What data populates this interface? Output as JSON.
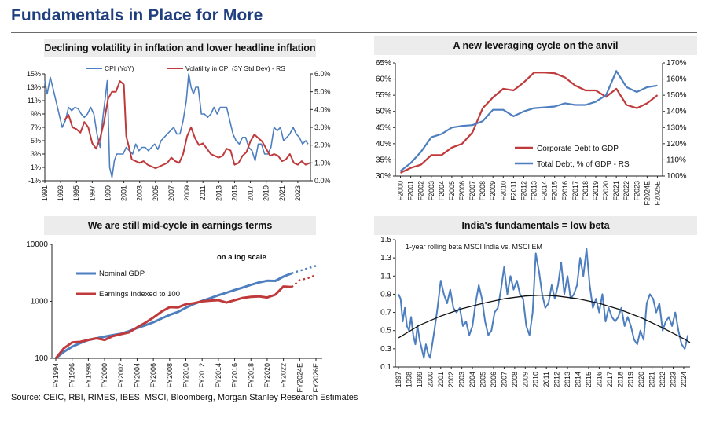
{
  "page": {
    "title": "Fundamentals in Place for More",
    "source": "Source: CEIC, RBI, RIMES, IBES, MSCI, Bloomberg, Morgan Stanley Research Estimates"
  },
  "colors": {
    "blue": "#4d7ebf",
    "red": "#c0393b",
    "title": "#1f3f7f",
    "panel_bg": "#ececec",
    "black": "#111111"
  },
  "chart_data": [
    {
      "id": "inflation",
      "type": "line",
      "title": "Declining volatility in inflation and lower headline inflation",
      "x_ticks": [
        "1991",
        "1993",
        "1995",
        "1997",
        "1999",
        "2001",
        "2003",
        "2005",
        "2007",
        "2009",
        "2011",
        "2013",
        "2015",
        "2017",
        "2019",
        "2021",
        "2023"
      ],
      "xlim": [
        1991,
        2024.6
      ],
      "y_left": {
        "ticks": [
          "-1%",
          "1%",
          "3%",
          "5%",
          "7%",
          "9%",
          "11%",
          "13%",
          "15%"
        ],
        "lim": [
          -1,
          15
        ]
      },
      "y_right": {
        "ticks": [
          "0.0%",
          "1.0%",
          "2.0%",
          "3.0%",
          "4.0%",
          "5.0%",
          "6.0%"
        ],
        "lim": [
          0,
          6
        ]
      },
      "series": [
        {
          "name": "CPI (YoY)",
          "axis": "left",
          "color": "#4d7ebf",
          "x": [
            1991,
            1991.3,
            1991.7,
            1992,
            1992.4,
            1992.8,
            1993.2,
            1993.6,
            1994,
            1994.4,
            1994.8,
            1995.2,
            1995.6,
            1996,
            1996.4,
            1996.8,
            1997.2,
            1997.6,
            1998,
            1998.3,
            1998.6,
            1998.9,
            1999.2,
            1999.5,
            1999.8,
            2000.1,
            2000.5,
            2000.9,
            2001.3,
            2001.7,
            2002.1,
            2002.5,
            2002.9,
            2003.3,
            2003.7,
            2004.1,
            2004.5,
            2004.9,
            2005.3,
            2005.7,
            2006.1,
            2006.5,
            2006.9,
            2007.3,
            2007.7,
            2008.1,
            2008.5,
            2008.9,
            2009.2,
            2009.5,
            2009.8,
            2010.1,
            2010.4,
            2010.8,
            2011.2,
            2011.6,
            2012,
            2012.4,
            2012.8,
            2013.2,
            2013.6,
            2014,
            2014.4,
            2014.8,
            2015.2,
            2015.6,
            2016,
            2016.4,
            2016.8,
            2017.2,
            2017.6,
            2018,
            2018.4,
            2018.8,
            2019.2,
            2019.6,
            2020,
            2020.4,
            2020.8,
            2021.2,
            2021.6,
            2022,
            2022.4,
            2022.8,
            2023.2,
            2023.6,
            2024,
            2024.3
          ],
          "y": [
            14,
            12,
            14.5,
            13,
            11,
            9,
            7,
            8,
            10,
            9.5,
            10,
            9.8,
            9,
            8.5,
            9,
            10,
            9,
            6,
            4,
            8,
            11,
            14,
            1,
            -0.5,
            2,
            3,
            3,
            3,
            4,
            3.5,
            3,
            4.5,
            3.5,
            4,
            4,
            3.5,
            4,
            4.5,
            3.7,
            5,
            5.5,
            6,
            6.5,
            7,
            6,
            6,
            8,
            11,
            15,
            13,
            12,
            13,
            13,
            9,
            9,
            8.5,
            9,
            10,
            9,
            10,
            10,
            10,
            8,
            6,
            5,
            4.5,
            5.5,
            5.5,
            4,
            3.5,
            2,
            4.5,
            4.5,
            3,
            3,
            4,
            7,
            6.5,
            7,
            5,
            5.5,
            6,
            7,
            6,
            5.5,
            4.5,
            5,
            4.5
          ]
        },
        {
          "name": "Volatility in CPI (3Y Std Dev) - RS",
          "axis": "right",
          "color": "#c0393b",
          "x": [
            1993.5,
            1994,
            1994.5,
            1995,
            1995.5,
            1996,
            1996.5,
            1997,
            1997.5,
            1998,
            1998.5,
            1999,
            1999.5,
            2000,
            2000.5,
            2001,
            2001.3,
            2001.7,
            2002,
            2002.5,
            2003,
            2003.5,
            2004,
            2004.5,
            2005,
            2005.5,
            2006,
            2006.5,
            2007,
            2007.5,
            2008,
            2008.5,
            2009,
            2009.5,
            2010,
            2010.5,
            2011,
            2011.5,
            2012,
            2012.5,
            2013,
            2013.5,
            2014,
            2014.5,
            2015,
            2015.5,
            2016,
            2016.5,
            2017,
            2017.5,
            2018,
            2018.5,
            2019,
            2019.5,
            2020,
            2020.5,
            2021,
            2021.5,
            2022,
            2022.5,
            2023,
            2023.5,
            2024,
            2024.5
          ],
          "y": [
            3.4,
            3.7,
            3.0,
            2.9,
            2.7,
            3.3,
            3.0,
            2.1,
            1.8,
            2.4,
            3.3,
            4.6,
            5.0,
            5.0,
            5.6,
            5.4,
            2.5,
            1.8,
            1.2,
            1.1,
            1.0,
            1.1,
            0.9,
            0.8,
            0.7,
            0.8,
            0.9,
            1.0,
            1.3,
            1.1,
            1.0,
            1.5,
            2.5,
            3.0,
            2.4,
            2.0,
            2.1,
            1.8,
            1.5,
            1.4,
            1.3,
            1.4,
            1.8,
            1.7,
            0.9,
            1.0,
            1.4,
            1.6,
            2.2,
            2.6,
            2.4,
            2.2,
            1.8,
            1.4,
            1.5,
            1.4,
            1.1,
            1.2,
            1.5,
            1.0,
            0.9,
            1.1,
            0.9,
            1.0
          ]
        }
      ]
    },
    {
      "id": "leverage",
      "type": "line",
      "title": "A new leveraging cycle on the anvil",
      "categories": [
        "F2000",
        "F2001",
        "F2002",
        "F2003",
        "F2004",
        "F2005",
        "F2006",
        "F2007",
        "F2008",
        "F2009",
        "F2010",
        "F2011",
        "F2012",
        "F2013",
        "F2014",
        "F2015",
        "F2016",
        "F2017",
        "F2018",
        "F2019",
        "F2020",
        "F2021",
        "F2022",
        "F2023",
        "F2024E",
        "F2025E"
      ],
      "y_left": {
        "ticks": [
          "30%",
          "35%",
          "40%",
          "45%",
          "50%",
          "55%",
          "60%",
          "65%"
        ],
        "lim": [
          30,
          65
        ]
      },
      "y_right": {
        "ticks": [
          "100%",
          "110%",
          "120%",
          "130%",
          "140%",
          "150%",
          "160%",
          "170%"
        ],
        "lim": [
          100,
          170
        ]
      },
      "series": [
        {
          "name": "Corporate Debt to GDP",
          "axis": "left",
          "color": "#c0393b",
          "values": [
            31,
            32.5,
            33.5,
            36.5,
            36.5,
            38.8,
            40,
            43.5,
            51,
            54.3,
            57,
            56.5,
            59,
            62,
            62,
            61.8,
            60.5,
            58,
            56.5,
            56.5,
            54.5,
            57,
            52,
            51,
            52.5,
            55
          ]
        },
        {
          "name": "Total Debt, % of GDP - RS",
          "axis": "right",
          "color": "#4d7ebf",
          "values": [
            103,
            108,
            115,
            124,
            126,
            130,
            131,
            131.5,
            134,
            141,
            141,
            137,
            140,
            142,
            142.5,
            143,
            145,
            144,
            144,
            146,
            150,
            165,
            155,
            152,
            155,
            156
          ]
        }
      ],
      "legend": "right-middle"
    },
    {
      "id": "earnings",
      "type": "line",
      "title": "We are still mid-cycle in earnings terms",
      "annotation": "on a log scale",
      "categories": [
        "FY1994",
        "FY1996",
        "FY1998",
        "FY2000",
        "FY2002",
        "FY2004",
        "FY2006",
        "FY2008",
        "FY2010",
        "FY2012",
        "FY2014",
        "FY2016",
        "FY2018",
        "FY2020",
        "FY2022",
        "FY2024E",
        "FY2026E"
      ],
      "y_scale": "log",
      "y_ticks": [
        "100",
        "1000",
        "10000"
      ],
      "ylim": [
        100,
        10000
      ],
      "forecast_from": "FY2023",
      "series": [
        {
          "name": "Nominal GDP",
          "color": "#4d7ebf",
          "x": [
            1994,
            1995,
            1996,
            1997,
            1998,
            1999,
            2000,
            2001,
            2002,
            2003,
            2004,
            2005,
            2006,
            2007,
            2008,
            2009,
            2010,
            2011,
            2012,
            2013,
            2014,
            2015,
            2016,
            2017,
            2018,
            2019,
            2020,
            2021,
            2022,
            2023,
            2024,
            2025,
            2026
          ],
          "values": [
            100,
            130,
            160,
            185,
            210,
            225,
            240,
            255,
            270,
            300,
            340,
            380,
            430,
            500,
            580,
            650,
            770,
            900,
            1020,
            1140,
            1280,
            1420,
            1580,
            1750,
            1950,
            2150,
            2300,
            2280,
            2720,
            3100,
            3450,
            3800,
            4200
          ]
        },
        {
          "name": "Earnings Indexed to 100",
          "color": "#c0393b",
          "x": [
            1994,
            1995,
            1996,
            1997,
            1998,
            1999,
            2000,
            2001,
            2002,
            2003,
            2004,
            2005,
            2006,
            2007,
            2008,
            2009,
            2010,
            2011,
            2012,
            2013,
            2014,
            2015,
            2016,
            2017,
            2018,
            2019,
            2020,
            2021,
            2022,
            2023,
            2024,
            2025,
            2026
          ],
          "values": [
            100,
            150,
            190,
            195,
            210,
            225,
            210,
            245,
            265,
            285,
            350,
            420,
            520,
            660,
            790,
            780,
            890,
            930,
            1000,
            1030,
            1050,
            950,
            1050,
            1150,
            1200,
            1220,
            1170,
            1310,
            1820,
            1780,
            2350,
            2550,
            2900
          ]
        }
      ],
      "legend": "left-middle"
    },
    {
      "id": "beta",
      "type": "line",
      "title": "India's fundamentals = low beta",
      "annotation": "1-year rolling beta MSCI India vs. MSCI  EM",
      "x_ticks": [
        "1997",
        "1998",
        "1999",
        "2000",
        "2001",
        "2002",
        "2003",
        "2004",
        "2005",
        "2006",
        "2007",
        "2008",
        "2009",
        "2010",
        "2011",
        "2012",
        "2013",
        "2014",
        "2015",
        "2016",
        "2017",
        "2018",
        "2019",
        "2020",
        "2021",
        "2022",
        "2023",
        "2024"
      ],
      "xlim": [
        1997,
        2024.6
      ],
      "y_ticks": [
        "0.1",
        "0.3",
        "0.5",
        "0.7",
        "0.9",
        "1.1",
        "1.3",
        "1.5"
      ],
      "ylim": [
        0.1,
        1.5
      ],
      "series": [
        {
          "name": "1-year rolling beta MSCI India vs. MSCI EM",
          "color": "#4d7ebf",
          "x": [
            1997,
            1997.2,
            1997.4,
            1997.6,
            1997.8,
            1998,
            1998.2,
            1998.4,
            1998.6,
            1998.8,
            1999,
            1999.2,
            1999.4,
            1999.6,
            1999.8,
            2000,
            2000.2,
            2000.4,
            2000.7,
            2001,
            2001.3,
            2001.6,
            2001.9,
            2002.2,
            2002.5,
            2002.8,
            2003.1,
            2003.4,
            2003.7,
            2004,
            2004.3,
            2004.6,
            2004.9,
            2005.2,
            2005.5,
            2005.8,
            2006.1,
            2006.4,
            2006.7,
            2007,
            2007.3,
            2007.6,
            2007.9,
            2008.2,
            2008.5,
            2008.8,
            2009.1,
            2009.4,
            2009.7,
            2010,
            2010.3,
            2010.6,
            2010.9,
            2011.2,
            2011.5,
            2011.8,
            2012.1,
            2012.4,
            2012.7,
            2013,
            2013.3,
            2013.6,
            2013.9,
            2014.2,
            2014.5,
            2014.8,
            2015.1,
            2015.4,
            2015.7,
            2016,
            2016.3,
            2016.6,
            2016.9,
            2017.2,
            2017.5,
            2017.8,
            2018.1,
            2018.4,
            2018.7,
            2019,
            2019.3,
            2019.6,
            2019.9,
            2020.2,
            2020.5,
            2020.8,
            2021.1,
            2021.4,
            2021.7,
            2022,
            2022.3,
            2022.6,
            2022.9,
            2023.2,
            2023.5,
            2023.8,
            2024.1,
            2024.4
          ],
          "values": [
            0.9,
            0.85,
            0.6,
            0.75,
            0.55,
            0.5,
            0.65,
            0.45,
            0.35,
            0.55,
            0.4,
            0.3,
            0.2,
            0.35,
            0.25,
            0.2,
            0.35,
            0.5,
            0.75,
            1.05,
            0.9,
            0.8,
            0.95,
            0.75,
            0.7,
            0.75,
            0.55,
            0.6,
            0.45,
            0.55,
            0.8,
            1.0,
            0.85,
            0.6,
            0.45,
            0.5,
            0.7,
            0.75,
            0.95,
            1.2,
            0.9,
            1.1,
            0.95,
            1.05,
            0.9,
            0.85,
            0.55,
            0.45,
            0.7,
            1.35,
            1.15,
            0.9,
            0.75,
            0.8,
            1.0,
            0.85,
            1.0,
            1.25,
            0.9,
            1.1,
            0.85,
            0.9,
            1.0,
            1.3,
            1.1,
            1.4,
            1.0,
            0.75,
            0.85,
            0.7,
            0.9,
            0.6,
            0.75,
            0.65,
            0.6,
            0.65,
            0.75,
            0.55,
            0.65,
            0.55,
            0.4,
            0.35,
            0.5,
            0.4,
            0.8,
            0.9,
            0.85,
            0.7,
            0.8,
            0.5,
            0.6,
            0.65,
            0.55,
            0.7,
            0.5,
            0.35,
            0.3,
            0.45
          ]
        },
        {
          "name": "Trend",
          "color": "#111111",
          "x": [
            1997,
            1999,
            2001,
            2003,
            2005,
            2007,
            2009,
            2010.5,
            2012,
            2014,
            2016,
            2018,
            2020,
            2022,
            2024,
            2024.6
          ],
          "values": [
            0.42,
            0.56,
            0.66,
            0.74,
            0.8,
            0.85,
            0.88,
            0.89,
            0.88,
            0.85,
            0.8,
            0.73,
            0.64,
            0.53,
            0.41,
            0.37
          ]
        }
      ]
    }
  ]
}
